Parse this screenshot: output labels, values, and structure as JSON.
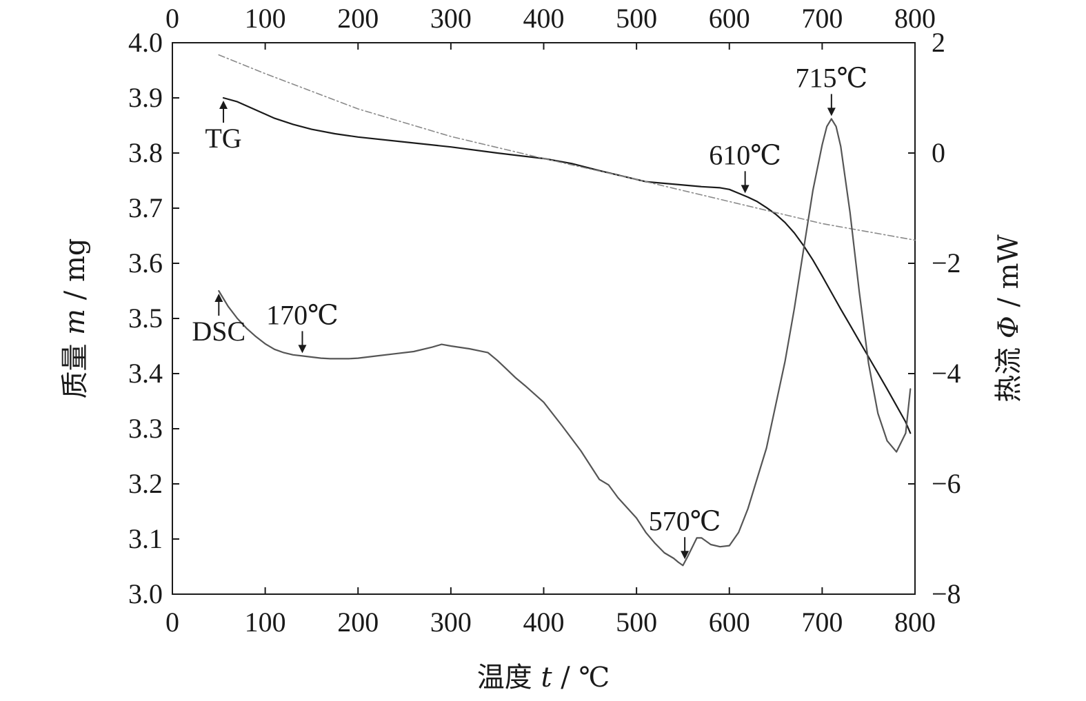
{
  "chart_data": {
    "type": "line",
    "title": "",
    "x_axis": {
      "label_prefix": "温度 ",
      "label_var": "t",
      "label_suffix": " / ℃",
      "range": [
        0,
        800
      ],
      "ticks": [
        0,
        100,
        200,
        300,
        400,
        500,
        600,
        700,
        800
      ],
      "tick_labels": [
        "0",
        "100",
        "200",
        "300",
        "400",
        "500",
        "600",
        "700",
        "800"
      ],
      "mirrored_top": true
    },
    "y_left": {
      "label_prefix": "质量 ",
      "label_var": "m",
      "label_suffix": " / mg",
      "range": [
        3.0,
        4.0
      ],
      "ticks": [
        3.0,
        3.1,
        3.2,
        3.3,
        3.4,
        3.5,
        3.6,
        3.7,
        3.8,
        3.9,
        4.0
      ],
      "tick_labels": [
        "3.0",
        "3.1",
        "3.2",
        "3.3",
        "3.4",
        "3.5",
        "3.6",
        "3.7",
        "3.8",
        "3.9",
        "4.0"
      ]
    },
    "y_right": {
      "label_prefix": "热流 ",
      "label_var": "Φ",
      "label_suffix": " / mW",
      "range": [
        -8,
        2
      ],
      "ticks": [
        -8,
        -6,
        -4,
        -2,
        0,
        2
      ],
      "tick_labels": [
        "−8",
        "−6",
        "−4",
        "−2",
        "0",
        "2"
      ],
      "color": "#2a2a6a"
    },
    "grid": false,
    "series": [
      {
        "name": "TG",
        "axis": "left",
        "color": "#1a1a1a",
        "x": [
          55,
          70,
          90,
          110,
          130,
          150,
          175,
          200,
          250,
          300,
          350,
          400,
          430,
          460,
          490,
          510,
          530,
          550,
          570,
          590,
          600,
          610,
          620,
          630,
          640,
          650,
          660,
          670,
          680,
          690,
          700,
          710,
          720,
          730,
          740,
          750,
          760,
          770,
          780,
          790,
          795
        ],
        "y": [
          3.9,
          3.893,
          3.878,
          3.863,
          3.852,
          3.843,
          3.835,
          3.829,
          3.82,
          3.811,
          3.8,
          3.79,
          3.781,
          3.768,
          3.756,
          3.748,
          3.745,
          3.742,
          3.739,
          3.737,
          3.734,
          3.727,
          3.72,
          3.712,
          3.701,
          3.689,
          3.674,
          3.655,
          3.632,
          3.606,
          3.577,
          3.547,
          3.517,
          3.488,
          3.459,
          3.43,
          3.401,
          3.372,
          3.342,
          3.312,
          3.292
        ]
      },
      {
        "name": "",
        "axis": "left",
        "color": "#8a8a8a",
        "dashed": true,
        "x": [
          50,
          100,
          200,
          300,
          400,
          500,
          600,
          700,
          800
        ],
        "y": [
          3.978,
          3.944,
          3.88,
          3.83,
          3.79,
          3.752,
          3.712,
          3.672,
          3.642
        ]
      },
      {
        "name": "DSC",
        "axis": "right",
        "color": "#555555",
        "x": [
          50,
          60,
          70,
          80,
          90,
          100,
          110,
          120,
          130,
          140,
          150,
          160,
          170,
          180,
          190,
          200,
          220,
          240,
          260,
          280,
          290,
          300,
          320,
          340,
          350,
          360,
          370,
          380,
          400,
          420,
          440,
          460,
          470,
          480,
          500,
          510,
          520,
          530,
          540,
          545,
          550,
          555,
          560,
          565,
          570,
          580,
          590,
          600,
          610,
          620,
          640,
          660,
          670,
          680,
          690,
          700,
          705,
          710,
          715,
          720,
          730,
          740,
          750,
          760,
          770,
          780,
          790,
          795
        ],
        "y": [
          -2.5,
          -2.78,
          -3.0,
          -3.18,
          -3.33,
          -3.46,
          -3.56,
          -3.62,
          -3.66,
          -3.68,
          -3.7,
          -3.72,
          -3.73,
          -3.73,
          -3.73,
          -3.72,
          -3.68,
          -3.64,
          -3.6,
          -3.52,
          -3.47,
          -3.5,
          -3.55,
          -3.62,
          -3.76,
          -3.92,
          -4.08,
          -4.22,
          -4.52,
          -4.95,
          -5.4,
          -5.92,
          -6.02,
          -6.25,
          -6.62,
          -6.88,
          -7.08,
          -7.25,
          -7.35,
          -7.42,
          -7.48,
          -7.32,
          -7.15,
          -6.98,
          -6.98,
          -7.1,
          -7.14,
          -7.12,
          -6.88,
          -6.45,
          -5.35,
          -3.78,
          -2.82,
          -1.75,
          -0.68,
          0.15,
          0.48,
          0.62,
          0.48,
          0.12,
          -1.08,
          -2.52,
          -3.82,
          -4.72,
          -5.22,
          -5.42,
          -5.08,
          -4.28
        ]
      }
    ],
    "annotations": [
      {
        "text": "TG",
        "arrow_series": "TG",
        "arrow_x": 55,
        "direction": "up"
      },
      {
        "text": "DSC",
        "arrow_series": "DSC",
        "arrow_x": 50,
        "direction": "up"
      },
      {
        "text": "170℃",
        "arrow_series": "DSC",
        "arrow_x": 140,
        "direction": "down"
      },
      {
        "text": "570℃",
        "arrow_series": "DSC",
        "arrow_x": 552,
        "direction": "down"
      },
      {
        "text": "610℃",
        "arrow_series": "TG",
        "arrow_x": 617,
        "direction": "down"
      },
      {
        "text": "715℃",
        "arrow_series": "DSC",
        "arrow_x": 710,
        "direction": "down"
      }
    ]
  }
}
